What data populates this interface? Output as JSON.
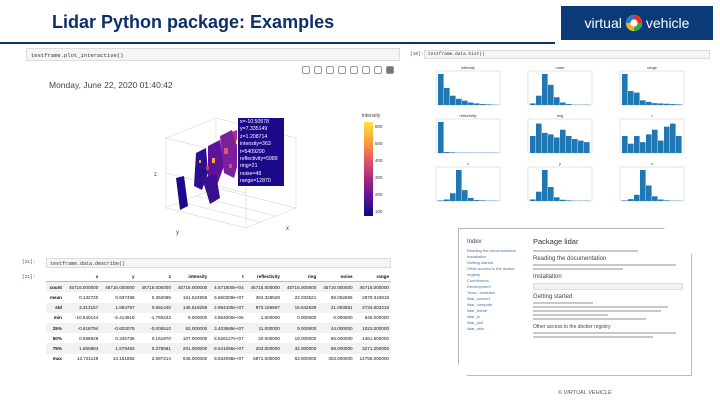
{
  "slide": {
    "title": "Lidar Python package: Examples",
    "logo_text_left": "virtual",
    "logo_text_right": "vehicle",
    "copyright": "© VIRTUAL VEHICLE"
  },
  "plot": {
    "code": "testframe.plot_interactive()",
    "date": "Monday, June 22, 2020 01:40:42",
    "colorbar_title": "intensity",
    "colorbar_ticks": [
      "600",
      "500",
      "400",
      "300",
      "200",
      "100"
    ],
    "hover": [
      "x=-10.50578",
      "y=7.335149",
      "z=1.208714",
      "intensity=363",
      "t=5409290",
      "reflectivity=5989",
      "ring=21",
      "noise=48",
      "range=12870"
    ],
    "axis_labels": [
      "z",
      "y",
      "x"
    ]
  },
  "describe": {
    "prompt_in": "[21]:",
    "prompt_out": "[21]:",
    "code": "testframe.data.describe()",
    "columns": [
      "",
      "x",
      "y",
      "z",
      "intensity",
      "t",
      "reflectivity",
      "ring",
      "noise",
      "range"
    ],
    "rows": [
      [
        "count",
        "45716.000000",
        "45716.000000",
        "45716.000000",
        "45716.000000",
        "4.571600e+04",
        "45716.000000",
        "45716.000000",
        "45716.000000",
        "45716.000000"
      ],
      [
        "mean",
        "0.132720",
        "0.837498",
        "0.362065",
        "161.524958",
        "5.660309e+07",
        "364.328528",
        "22.033621",
        "58.062866",
        "2879.343818"
      ],
      [
        "std",
        "3.313157",
        "1.864767",
        "0.681440",
        "145.619259",
        "2.894435e+07",
        "973.166667",
        "15.842639",
        "21.053581",
        "2734.603215"
      ],
      [
        "min",
        "-10.640144",
        "-2.414919",
        "-1.750242",
        "9.000000",
        "3.564000e+06",
        "1.000000",
        "0.000000",
        "0.000000",
        "645.000000"
      ],
      [
        "25%",
        "-0.618794",
        "-0.602078",
        "-0.005510",
        "62.000000",
        "3.403685e+07",
        "11.000000",
        "9.000000",
        "44.000000",
        "1022.000000"
      ],
      [
        "50%",
        "0.558629",
        "0.345736",
        "0.161870",
        "107.000000",
        "5.526127e+07",
        "20.000000",
        "19.000000",
        "56.000000",
        "1461.500000"
      ],
      [
        "75%",
        "1.860884",
        "1.678483",
        "0.378581",
        "201.000000",
        "8.541066e+07",
        "203.000000",
        "32.000000",
        "69.000000",
        "3271.250000"
      ],
      [
        "max",
        "13.721149",
        "14.151856",
        "2.697214",
        "645.000000",
        "9.834098e+07",
        "6871.000000",
        "63.000000",
        "303.000000",
        "14755.000000"
      ]
    ]
  },
  "histograms": {
    "prompt": "[10]:",
    "code": "testframe.data.hist()",
    "panels": [
      {
        "title": "intensity",
        "bars": [
          1.0,
          0.55,
          0.3,
          0.2,
          0.14,
          0.08,
          0.05,
          0.03,
          0.02,
          0.01
        ]
      },
      {
        "title": "noise",
        "bars": [
          0.05,
          0.3,
          1.0,
          0.65,
          0.25,
          0.08,
          0.03,
          0.01,
          0.01,
          0.01
        ]
      },
      {
        "title": "range",
        "bars": [
          1.0,
          0.45,
          0.4,
          0.15,
          0.1,
          0.06,
          0.05,
          0.04,
          0.03,
          0.02
        ]
      },
      {
        "title": "reflectivity",
        "bars": [
          1.0,
          0.03,
          0.02,
          0.01,
          0.01,
          0.01,
          0.01,
          0.01,
          0.01,
          0.01
        ]
      },
      {
        "title": "ring",
        "bars": [
          0.55,
          0.95,
          0.65,
          0.6,
          0.5,
          0.75,
          0.55,
          0.45,
          0.4,
          0.35
        ]
      },
      {
        "title": "t",
        "bars": [
          0.55,
          0.3,
          0.55,
          0.35,
          0.6,
          0.75,
          0.4,
          0.85,
          0.95,
          0.55
        ]
      },
      {
        "title": "x",
        "bars": [
          0.02,
          0.05,
          0.25,
          1.0,
          0.35,
          0.1,
          0.03,
          0.02,
          0.01,
          0.01
        ]
      },
      {
        "title": "y",
        "bars": [
          0.05,
          0.3,
          1.0,
          0.45,
          0.12,
          0.04,
          0.02,
          0.01,
          0.01,
          0.01
        ]
      },
      {
        "title": "z",
        "bars": [
          0.02,
          0.06,
          0.2,
          1.0,
          0.5,
          0.15,
          0.05,
          0.02,
          0.01,
          0.01
        ]
      }
    ]
  },
  "doc": {
    "sidebar_title": "Index",
    "sidebar_items": [
      "Reading the documentation",
      "Installation",
      "Getting started",
      "Other access to the docker registry",
      "Contributors",
      "Development",
      "Tools / modules",
      "lidar_convert",
      "lidar_compute",
      "lidar_frame",
      "lidar_io",
      "lidar_plot",
      "lidar_utils"
    ],
    "package_title": "Package lidar",
    "section_1": "Reading the documentation",
    "section_2": "Installation",
    "section_3": "Getting started",
    "section_4": "Other access to the docker registry"
  },
  "colors": {
    "brand": "#0a3b78",
    "title": "#0d2f6b",
    "hist_bar": "#1f77b4"
  }
}
